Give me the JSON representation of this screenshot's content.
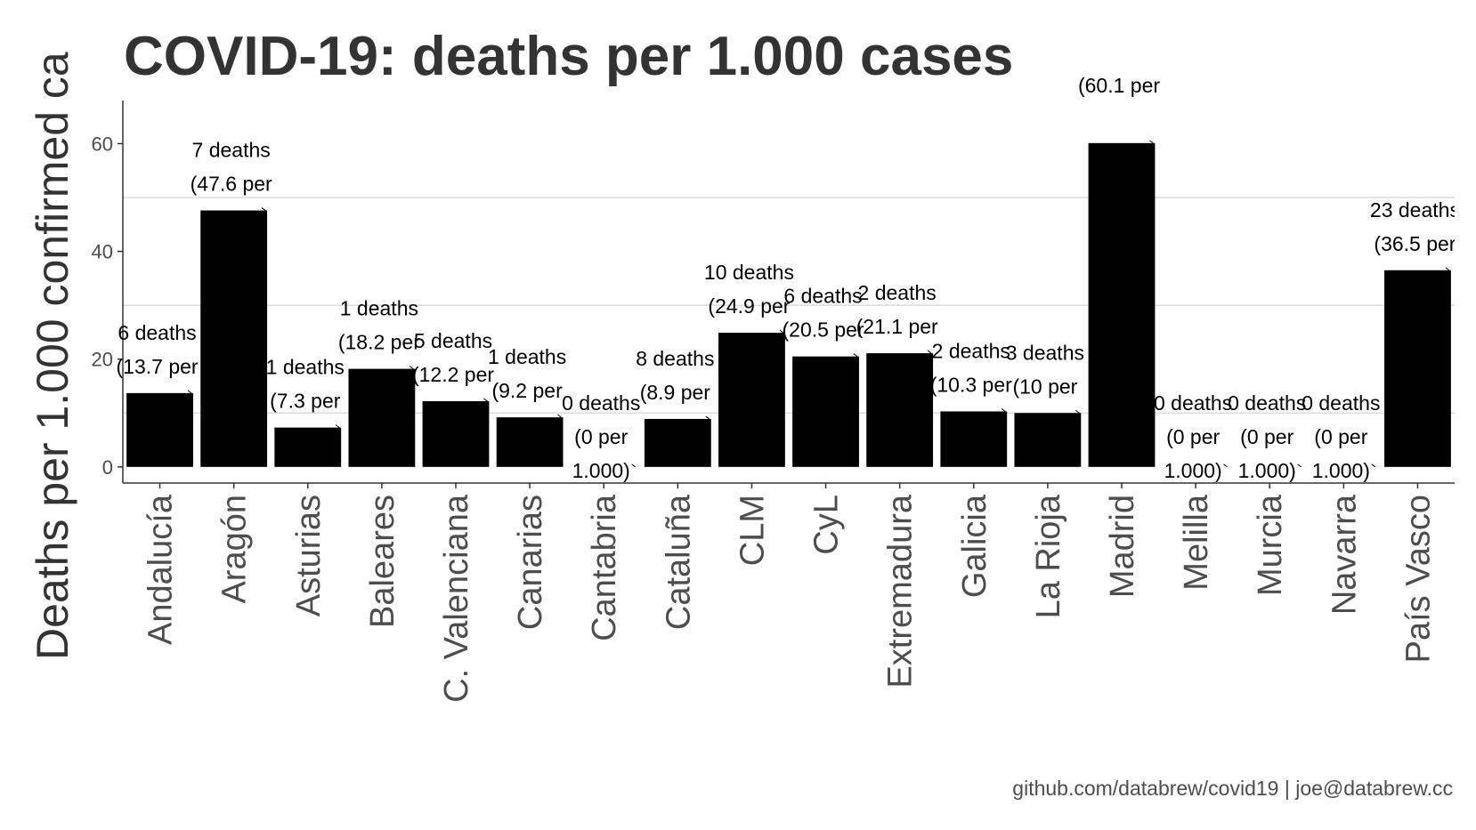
{
  "chart_data": {
    "type": "bar",
    "title": "COVID-19: deaths per 1.000 cases",
    "ylabel": "Deaths per 1.000 confirmed ca",
    "xlabel": "",
    "ylim": [
      -3,
      68
    ],
    "yticks": [
      0,
      20,
      40,
      60
    ],
    "grid": true,
    "caption": "github.com/databrew/covid19 | joe@databrew.cc",
    "categories": [
      "Andalucía",
      "Aragón",
      "Asturias",
      "Baleares",
      "C. Valenciana",
      "Canarias",
      "Cantabria",
      "Cataluña",
      "CLM",
      "CyL",
      "Extremadura",
      "Galicia",
      "La Rioja",
      "Madrid",
      "Melilla",
      "Murcia",
      "Navarra",
      "País Vasco"
    ],
    "values": [
      13.7,
      47.6,
      7.3,
      18.2,
      12.2,
      9.2,
      0,
      8.9,
      24.9,
      20.5,
      21.1,
      10.3,
      10,
      60.1,
      0,
      0,
      0,
      36.5
    ],
    "bar_color": "#000000",
    "labels": [
      {
        "line1": "6 deaths",
        "line2": "(13.7 per",
        "line3": ""
      },
      {
        "line1": "7 deaths",
        "line2": "(47.6 per",
        "line3": ""
      },
      {
        "line1": "1 deaths",
        "line2": "(7.3 per",
        "line3": ""
      },
      {
        "line1": "1 deaths",
        "line2": "(18.2 per",
        "line3": ""
      },
      {
        "line1": "5 deaths",
        "line2": "(12.2 per",
        "line3": ""
      },
      {
        "line1": "1 deaths",
        "line2": "(9.2 per",
        "line3": ""
      },
      {
        "line1": "0 deaths",
        "line2": "(0 per",
        "line3": "1.000)"
      },
      {
        "line1": "8 deaths",
        "line2": "(8.9 per",
        "line3": ""
      },
      {
        "line1": "10 deaths",
        "line2": "(24.9 per",
        "line3": ""
      },
      {
        "line1": "6 deaths",
        "line2": "(20.5 per",
        "line3": ""
      },
      {
        "line1": "2 deaths",
        "line2": "(21.1 per",
        "line3": ""
      },
      {
        "line1": "2 deaths",
        "line2": "(10.3 per",
        "line3": ""
      },
      {
        "line1": "3 deaths",
        "line2": "(10 per",
        "line3": ""
      },
      {
        "line1": "",
        "line2": "(60.1 per",
        "line3": ""
      },
      {
        "line1": "0 deaths",
        "line2": "(0 per",
        "line3": "1.000)"
      },
      {
        "line1": "0 deaths",
        "line2": "(0 per",
        "line3": "1.000)"
      },
      {
        "line1": "0 deaths",
        "line2": "(0 per",
        "line3": "1.000)"
      },
      {
        "line1": "23 deaths",
        "line2": "(36.5 per",
        "line3": ""
      }
    ]
  }
}
